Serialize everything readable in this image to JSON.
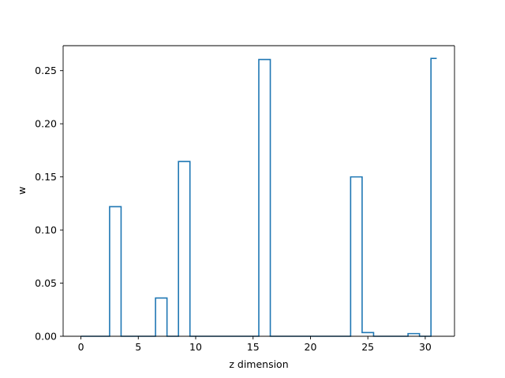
{
  "chart_data": {
    "type": "step",
    "title": "",
    "xlabel": "z dimension",
    "ylabel": "w",
    "xlim": [
      -1.55,
      32.55
    ],
    "ylim": [
      0.0,
      0.2735
    ],
    "xticks": [
      0,
      5,
      10,
      15,
      20,
      25,
      30
    ],
    "yticks": [
      0.0,
      0.05,
      0.1,
      0.15,
      0.2,
      0.25
    ],
    "ytick_labels": [
      "0.00",
      "0.05",
      "0.10",
      "0.15",
      "0.20",
      "0.25"
    ],
    "grid": false,
    "series": [
      {
        "color": "#1f77b4",
        "step": "mid",
        "x": [
          0,
          1,
          2,
          3,
          4,
          5,
          6,
          7,
          8,
          9,
          10,
          11,
          12,
          13,
          14,
          15,
          16,
          17,
          18,
          19,
          20,
          21,
          22,
          23,
          24,
          25,
          26,
          27,
          28,
          29,
          30,
          31
        ],
        "y": [
          0,
          0,
          0,
          0.122,
          0,
          0,
          0,
          0.036,
          0,
          0.1645,
          0,
          0,
          0,
          0,
          0,
          0,
          0.2605,
          0,
          0,
          0,
          0,
          0,
          0,
          0,
          0.15,
          0.0035,
          0,
          0,
          0,
          0.0025,
          0,
          0.2615
        ]
      }
    ]
  }
}
